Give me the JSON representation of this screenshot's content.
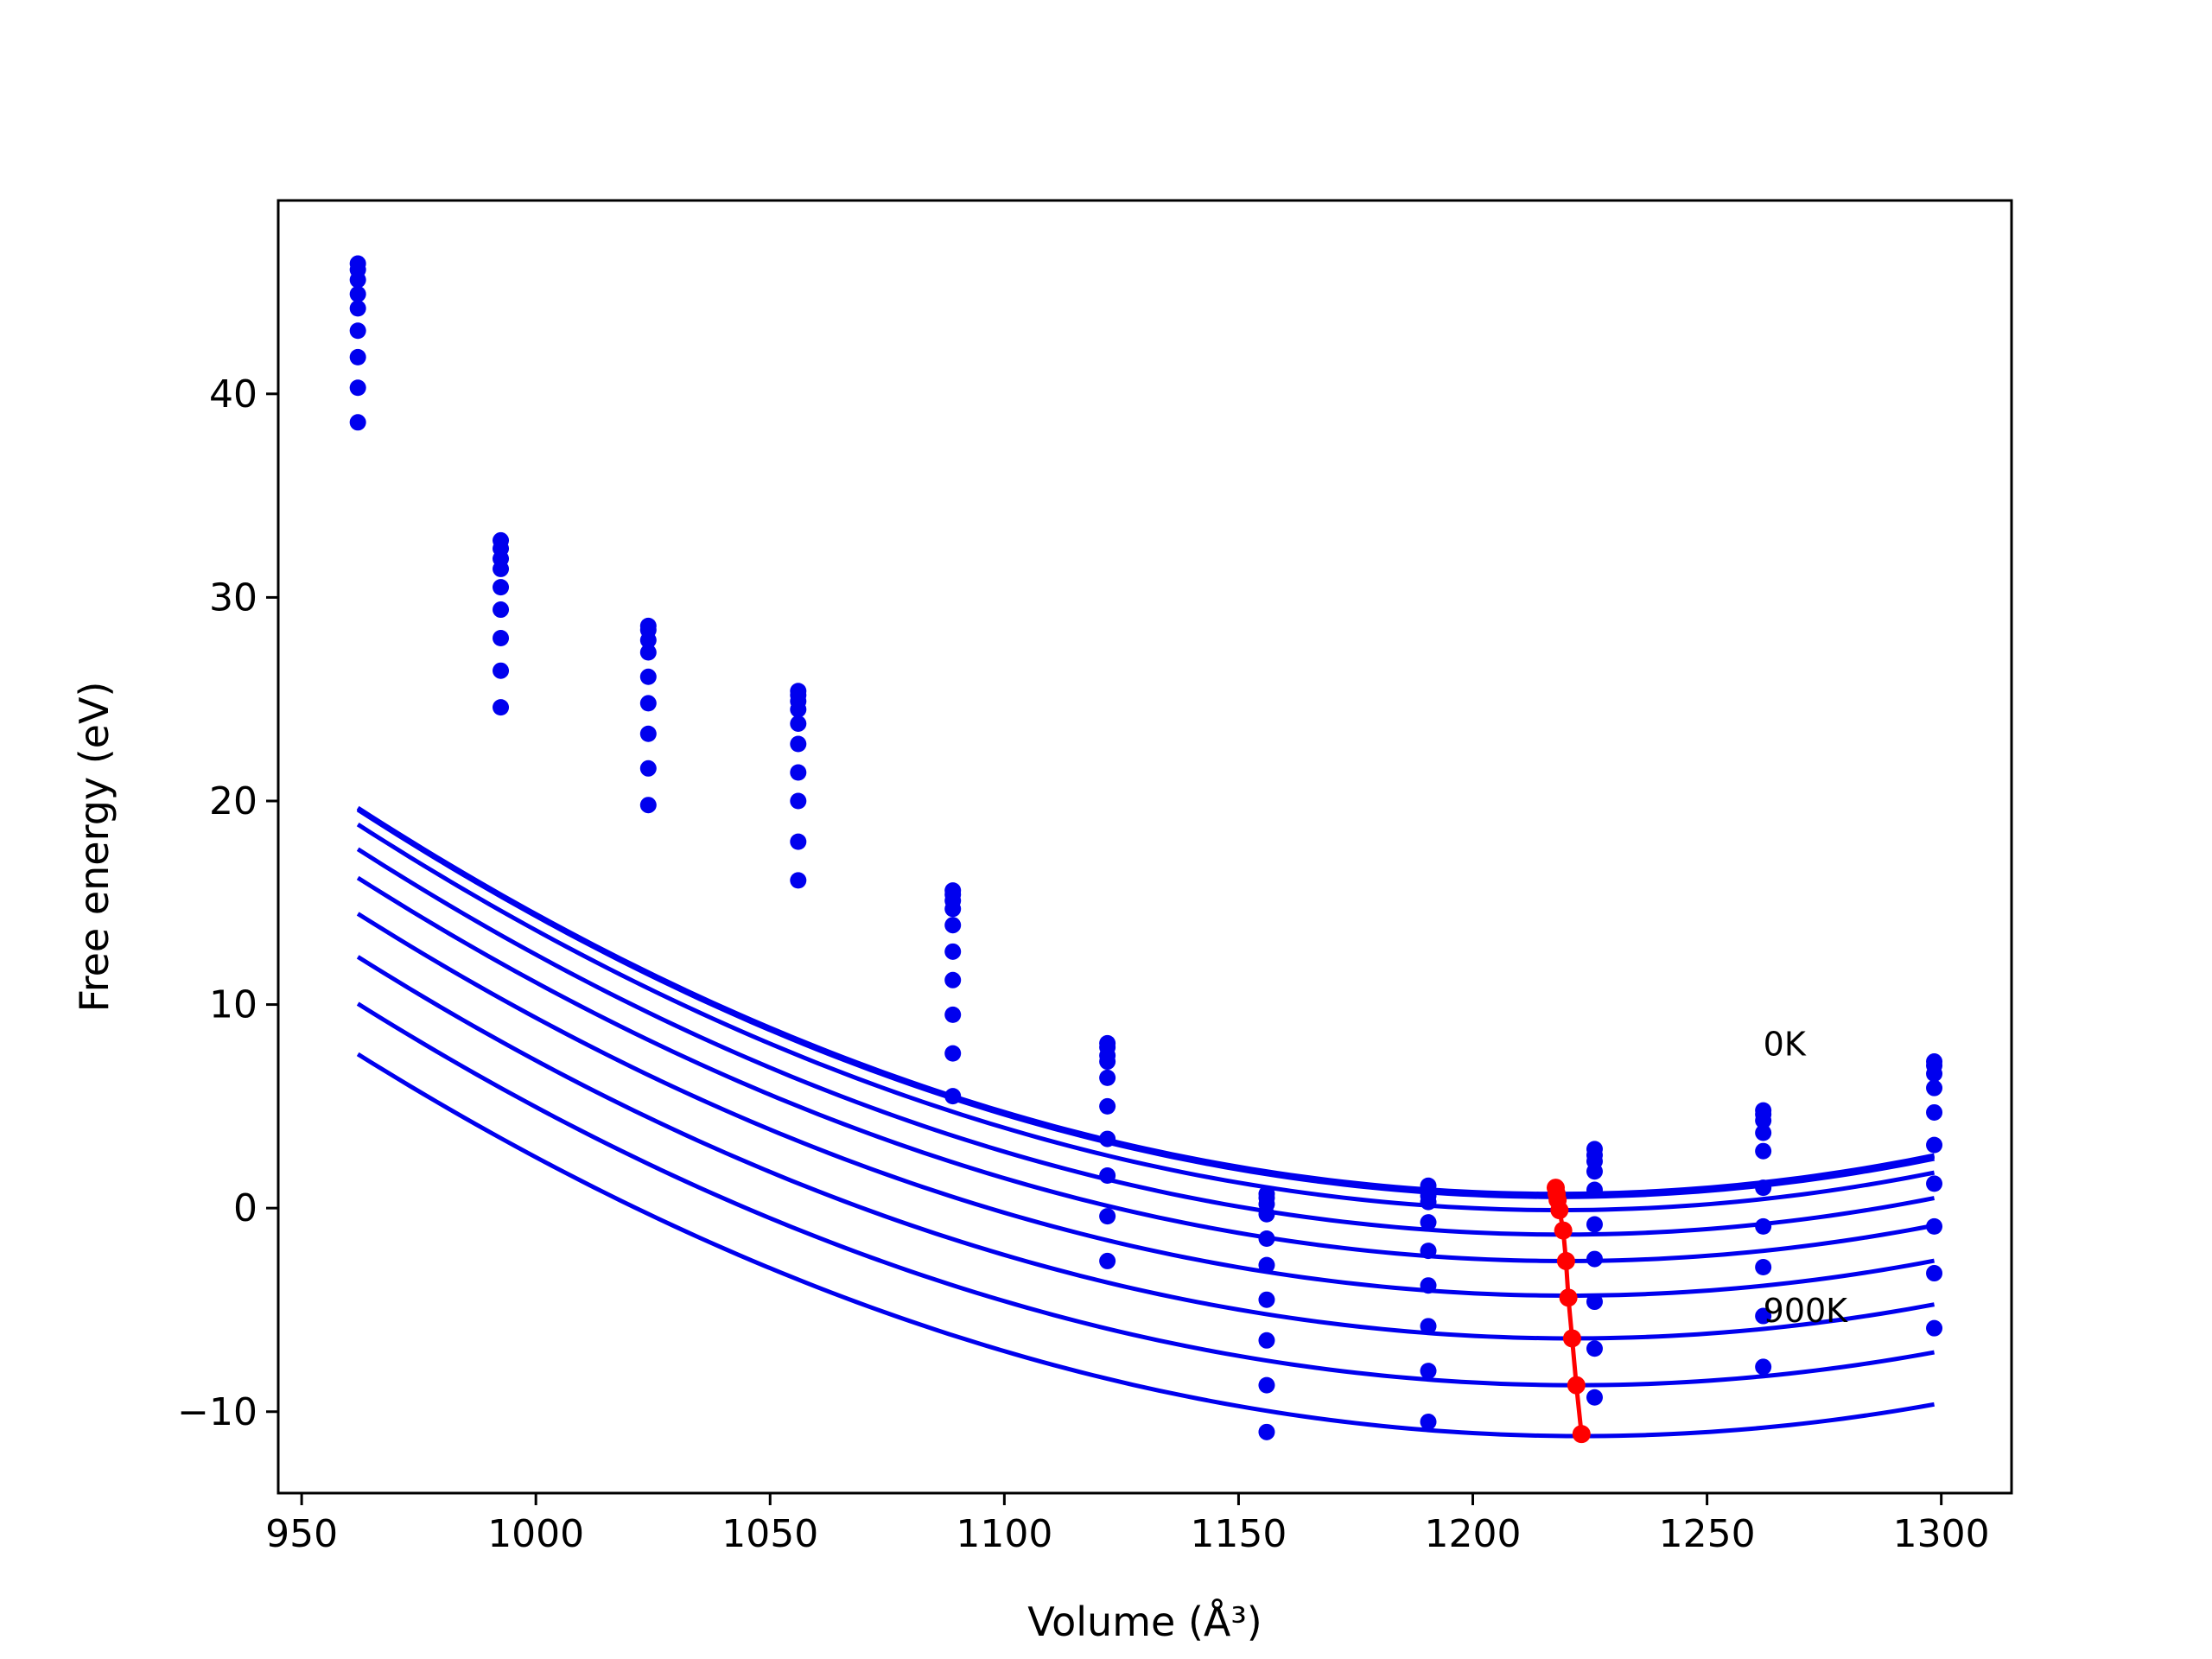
{
  "chart_data": {
    "type": "scatter",
    "xlabel": "Volume (Å³)",
    "ylabel": "Free energy (eV)",
    "xlim": [
      945,
      1315
    ],
    "ylim": [
      -14,
      49.5
    ],
    "xticks": [
      950,
      1000,
      1050,
      1100,
      1150,
      1200,
      1250,
      1300
    ],
    "yticks": [
      -10,
      0,
      10,
      20,
      30,
      40
    ],
    "ytick_labels": [
      "−10",
      "0",
      "10",
      "20",
      "30",
      "40"
    ],
    "grid": false,
    "colors": {
      "fit": "#0000ee",
      "points": "#0000ee",
      "minimum": "#ff0000"
    },
    "volumes": [
      962,
      992.5,
      1024,
      1056,
      1089,
      1122,
      1156,
      1190.5,
      1226,
      1262,
      1298.5
    ],
    "curve_range": [
      962,
      1298.5
    ],
    "fits": [
      {
        "v0": 1217.7,
        "f0": 0.7,
        "k": 0.00029
      },
      {
        "v0": 1217.9,
        "f0": 0.65,
        "k": 0.00029
      },
      {
        "v0": 1218.1,
        "f0": 0.55,
        "k": 0.00029
      },
      {
        "v0": 1218.5,
        "f0": -0.1,
        "k": 0.000288
      },
      {
        "v0": 1219.3,
        "f0": -1.3,
        "k": 0.000286
      },
      {
        "v0": 1219.9,
        "f0": -2.6,
        "k": 0.000283
      },
      {
        "v0": 1220.4,
        "f0": -4.3,
        "k": 0.000281
      },
      {
        "v0": 1221.2,
        "f0": -6.4,
        "k": 0.000279
      },
      {
        "v0": 1222.1,
        "f0": -8.7,
        "k": 0.000277
      },
      {
        "v0": 1223.2,
        "f0": -11.2,
        "k": 0.000275
      }
    ],
    "points": [
      [
        46.4,
        46.1,
        45.6,
        44.9,
        44.2,
        43.1,
        41.8,
        40.3,
        38.6
      ],
      [
        32.8,
        32.4,
        31.9,
        31.4,
        30.5,
        29.4,
        28.0,
        26.4,
        24.6
      ],
      [
        28.6,
        28.4,
        27.9,
        27.3,
        26.1,
        24.8,
        23.3,
        21.6,
        19.8
      ],
      [
        25.4,
        25.2,
        24.9,
        24.5,
        23.8,
        22.8,
        21.4,
        20.0,
        18.0,
        16.1
      ],
      [
        15.6,
        15.4,
        15.1,
        14.7,
        13.9,
        12.6,
        11.2,
        9.5,
        7.6,
        5.5
      ],
      [
        8.1,
        7.9,
        7.5,
        7.2,
        6.4,
        5.0,
        3.4,
        1.6,
        -0.4,
        -2.6
      ],
      [
        0.7,
        0.5,
        0.2,
        -0.3,
        -1.5,
        -2.8,
        -4.5,
        -6.5,
        -8.7,
        -11.0
      ],
      [
        1.1,
        0.9,
        0.6,
        0.3,
        -0.7,
        -2.1,
        -3.8,
        -5.8,
        -8.0,
        -10.5
      ],
      [
        2.9,
        2.6,
        2.3,
        1.8,
        0.9,
        -0.8,
        -2.5,
        -4.6,
        -6.9,
        -9.3
      ],
      [
        4.8,
        4.6,
        4.3,
        3.7,
        2.8,
        1.0,
        -0.9,
        -2.9,
        -5.3,
        -7.8
      ],
      [
        7.2,
        7.0,
        6.6,
        5.9,
        4.7,
        3.1,
        1.2,
        -0.9,
        -3.2,
        -5.9
      ]
    ],
    "minimum_points": [
      [
        1217.7,
        1.0
      ],
      [
        1217.9,
        0.7
      ],
      [
        1218.1,
        0.4
      ],
      [
        1218.5,
        -0.1
      ],
      [
        1219.3,
        -1.1
      ],
      [
        1219.9,
        -2.6
      ],
      [
        1220.4,
        -4.4
      ],
      [
        1221.2,
        -6.4
      ],
      [
        1222.1,
        -8.7
      ],
      [
        1223.2,
        -11.1
      ]
    ],
    "annotations": [
      {
        "text": "0K",
        "x": 1262,
        "y": 7.5
      },
      {
        "text": "900K",
        "x": 1262,
        "y": -5.6
      }
    ]
  }
}
